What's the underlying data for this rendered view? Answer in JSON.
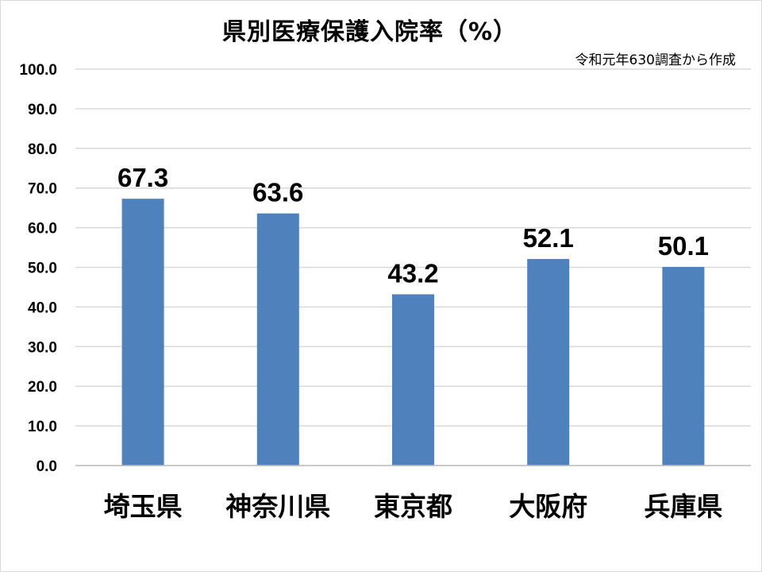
{
  "chart_data": {
    "type": "bar",
    "title": "県別医療保護入院率（%）",
    "subtitle": "令和元年630調査から作成",
    "categories": [
      "埼玉県",
      "神奈川県",
      "東京都",
      "大阪府",
      "兵庫県"
    ],
    "values": [
      67.3,
      63.6,
      43.2,
      52.1,
      50.1
    ],
    "data_labels": [
      "67.3",
      "63.6",
      "43.2",
      "52.1",
      "50.1"
    ],
    "yticks": [
      "0.0",
      "10.0",
      "20.0",
      "30.0",
      "40.0",
      "50.0",
      "60.0",
      "70.0",
      "80.0",
      "90.0",
      "100.0"
    ],
    "ylim": [
      0,
      100
    ],
    "grid": true,
    "legend": "none",
    "colors": {
      "bar": "#4f81bd",
      "grid": "#d9d9d9"
    }
  }
}
